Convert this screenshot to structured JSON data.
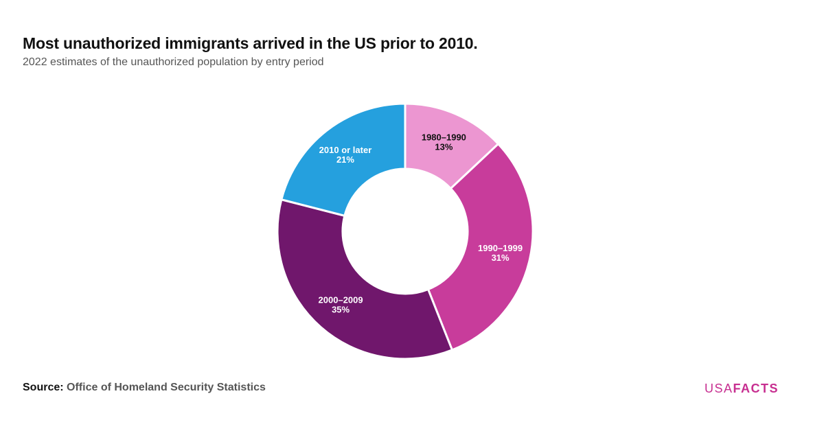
{
  "title": "Most unauthorized immigrants arrived in the US prior to 2010.",
  "subtitle": "2022 estimates of the unauthorized population by entry period",
  "source": {
    "label": "Source:",
    "text": "Office of Homeland Security Statistics"
  },
  "logo": {
    "usa": "USA",
    "facts": "FACTS"
  },
  "chart_data": {
    "type": "pie",
    "donut": true,
    "title": "",
    "slices": [
      {
        "label": "1980–1990",
        "value": 13,
        "display": "13%",
        "color": "#ec96d1",
        "label_color": "#111111"
      },
      {
        "label": "1990–1999",
        "value": 31,
        "display": "31%",
        "color": "#c83c9b",
        "label_color": "#ffffff"
      },
      {
        "label": "2000–2009",
        "value": 35,
        "display": "35%",
        "color": "#70176c",
        "label_color": "#ffffff"
      },
      {
        "label": "2010 or later",
        "value": 21,
        "display": "21%",
        "color": "#25a0de",
        "label_color": "#ffffff"
      }
    ]
  }
}
